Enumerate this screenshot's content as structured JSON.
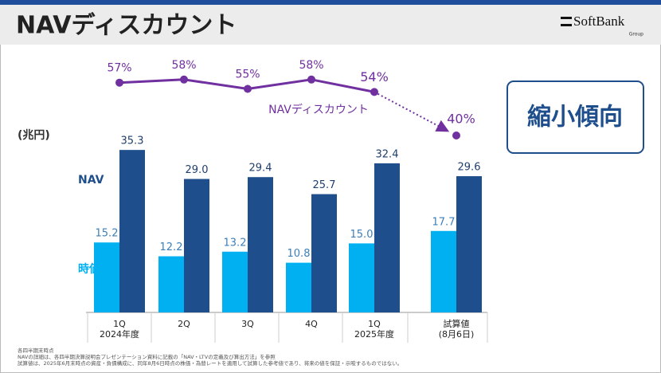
{
  "header": {
    "title": "NAVディスカウント",
    "logo": "SoftBank",
    "logo_sub": "Group"
  },
  "chart_data": {
    "type": "bar",
    "unit": "(兆円)",
    "categories": [
      "1Q",
      "2Q",
      "3Q",
      "4Q",
      "1Q",
      "試算値"
    ],
    "category_sublabels": [
      "2024年度",
      null,
      null,
      null,
      "2025年度",
      "(8月6日)"
    ],
    "ylim": [
      0,
      40
    ],
    "series": [
      {
        "name": "時価総額",
        "color": "#00b0f0",
        "values": [
          15.2,
          12.2,
          13.2,
          10.8,
          15.0,
          17.7
        ],
        "value_labels": [
          "15.2",
          "12.2",
          "13.2",
          "10.8",
          "15.0",
          "17.7"
        ]
      },
      {
        "name": "NAV",
        "color": "#1f4e8c",
        "values": [
          35.3,
          29.0,
          29.4,
          25.7,
          32.4,
          29.6
        ],
        "value_labels": [
          "35.3",
          "29.0",
          "29.4",
          "25.7",
          "32.4",
          "29.6"
        ]
      },
      {
        "name": "NAVディスカウント",
        "type": "line",
        "axis": "y2",
        "color": "#7030a0",
        "values": [
          57,
          58,
          55,
          58,
          54,
          40
        ],
        "value_labels": [
          "57%",
          "58%",
          "55%",
          "58%",
          "54%",
          "40%"
        ]
      }
    ],
    "y2lim": [
      30,
      70
    ],
    "annotation": "縮小傾向"
  },
  "footnotes": [
    "各四半期末時点",
    "NAVの詳細は、各四半期決算説明会プレゼンテーション資料に記載の「NAV・LTVの定義及び算出方法」を参照",
    "試算値は、2025年6月末時点の資産・負債構成に、同年8月6日時点の株価・為替レートを適用して試算した参考値であり、将来の値を保証・示唆するものではない。"
  ]
}
